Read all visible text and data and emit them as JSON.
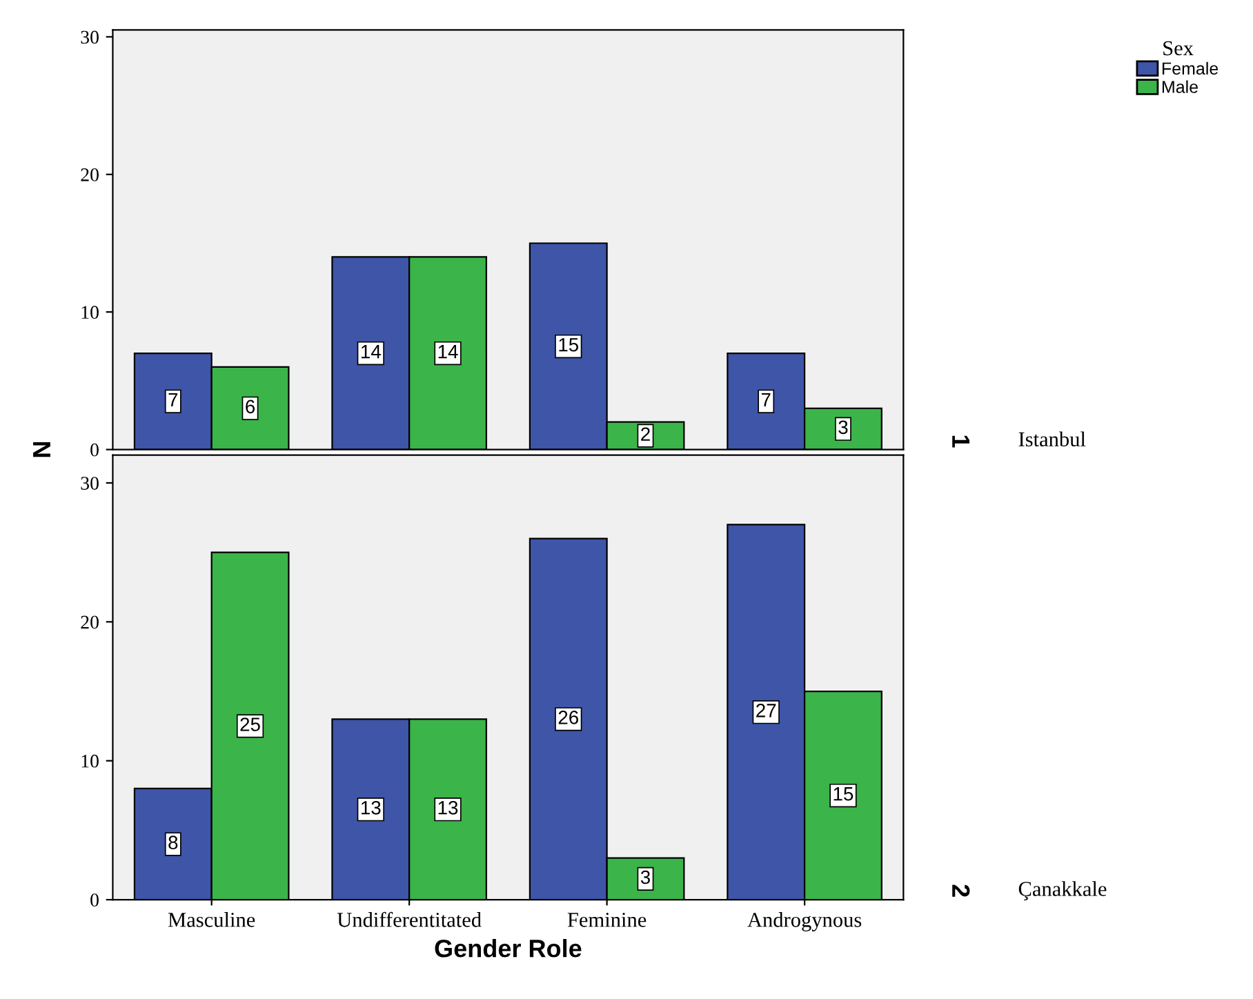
{
  "chart_data": [
    {
      "type": "bar",
      "categories": [
        null,
        null,
        null,
        null
      ],
      "series": [
        {
          "name": "Female",
          "color": "#3e55a8",
          "values": [
            7,
            14,
            15,
            7
          ]
        },
        {
          "name": "Male",
          "color": "#3bb44a",
          "values": [
            6,
            14,
            2,
            3
          ]
        }
      ],
      "ylim": [
        0,
        30.5
      ],
      "yticks": [
        0,
        10,
        20,
        30
      ],
      "ylabel": "N",
      "legend": "top right",
      "legend_title": "Sex",
      "data_labels": true,
      "grid": false,
      "annotations": [
        "1",
        "Istanbul"
      ]
    },
    {
      "type": "bar",
      "categories": [
        "Masculine",
        "Undifferentitated",
        "Feminine",
        "Androgynous"
      ],
      "series": [
        {
          "color": "#3e55a8",
          "values": [
            8,
            13,
            26,
            27
          ]
        },
        {
          "color": "#3bb44a",
          "values": [
            25,
            13,
            3,
            15
          ]
        }
      ],
      "ylim": [
        0,
        32
      ],
      "yticks": [
        0,
        10,
        20,
        30
      ],
      "xlabel": "Gender Role",
      "data_labels": true,
      "grid": false,
      "annotations": [
        "2",
        "Çanakkale"
      ]
    }
  ]
}
